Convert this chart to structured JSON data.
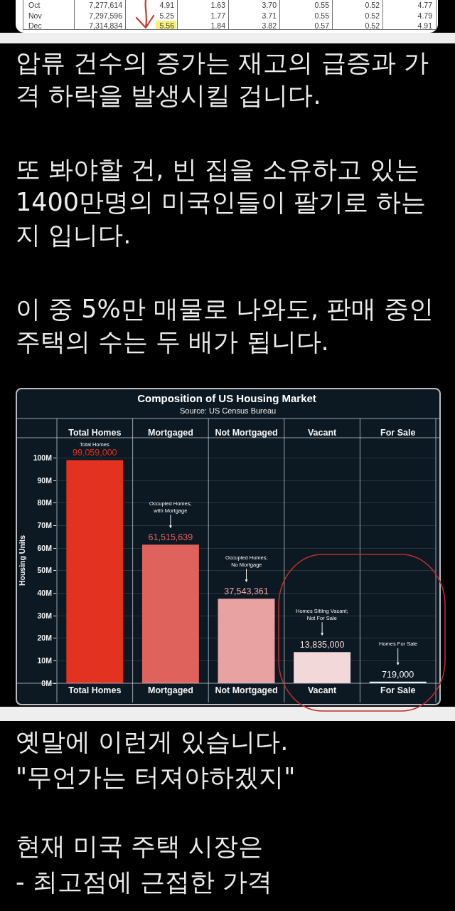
{
  "chart_data": {
    "type": "bar",
    "title": "Composition of US Housing Market",
    "ylabel": "Housing Units",
    "categories": [
      "Total Homes",
      "Mortgaged",
      "Not Mortgaged",
      "Vacant",
      "For Sale"
    ],
    "values": [
      99059000,
      61515639,
      37543361,
      13835000,
      719000
    ],
    "colors": [
      "#e3321f",
      "#e0625d",
      "#e8a2a2",
      "#f2d8d8",
      "#f4f4f4"
    ],
    "value_labels": [
      "99,059,000",
      "61,515,639",
      "37,543,361",
      "13,835,000",
      "719,000"
    ],
    "ylim": [
      0,
      109000000
    ],
    "yticks": [
      {
        "value": 0,
        "label": "0M"
      },
      {
        "value": 10000000,
        "label": "10M"
      },
      {
        "value": 20000000,
        "label": "20M"
      },
      {
        "value": 30000000,
        "label": "30M"
      },
      {
        "value": 40000000,
        "label": "40M"
      },
      {
        "value": 50000000,
        "label": "50M"
      },
      {
        "value": 60000000,
        "label": "60M"
      },
      {
        "value": 70000000,
        "label": "70M"
      },
      {
        "value": 80000000,
        "label": "80M"
      },
      {
        "value": 90000000,
        "label": "90M"
      },
      {
        "value": 100000000,
        "label": "100M"
      }
    ],
    "grid": true,
    "annotations": [
      "Source: US Census Bureau",
      "Total Homes",
      "Occupied Homes;\nwith Mortgage",
      "Occupied Homes;\nNo Mortgage",
      "Homes Sitting Vacant;\nNot For Sale",
      "Homes For Sale",
      "압류 건수의 증가는 재고의 급증과 가격 하락을 발생시킬 겁니다.",
      "또 봐야할 건, 빈 집을 소유하고 있는 1400만명의 미국인들이 팔기로 하는지 입니다.",
      "이 중 5%만 매물로 나와도, 판매 중인 주택의 수는 두 배가 됩니다.",
      "옛말에 이런게 있습니다.\n\"무언가는 터져야하겠지\"",
      "현재 미국 주택 시장은\n- 최고점에 근접한 가격",
      "Oct",
      "7,277,614",
      "4.91",
      "1.63",
      "3.70",
      "0.55",
      "0.52",
      "4.77",
      "Nov",
      "7,297,596",
      "5.25",
      "1.77",
      "3.71",
      "0.55",
      "0.52",
      "4.79",
      "Dec",
      "7,314,834",
      "5.56",
      "1.84",
      "3.82",
      "0.57",
      "0.52",
      "4.91"
    ]
  }
}
